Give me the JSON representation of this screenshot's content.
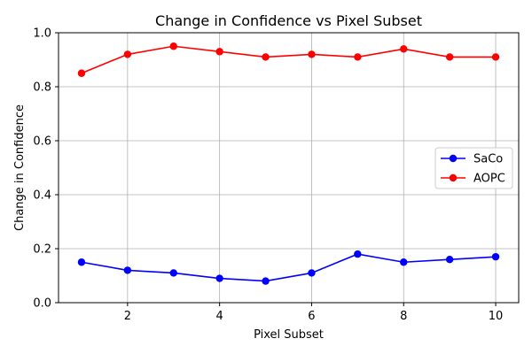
{
  "chart_data": {
    "type": "line",
    "title": "Change in Confidence vs Pixel Subset",
    "xlabel": "Pixel Subset",
    "ylabel": "Change in Confidence",
    "x": [
      1,
      2,
      3,
      4,
      5,
      6,
      7,
      8,
      9,
      10
    ],
    "xlim": [
      0.5,
      10.5
    ],
    "ylim": [
      0.0,
      1.0
    ],
    "xticks": [
      2,
      4,
      6,
      8,
      10
    ],
    "xtick_labels": [
      "2",
      "4",
      "6",
      "8",
      "10"
    ],
    "yticks": [
      0.0,
      0.2,
      0.4,
      0.6,
      0.8,
      1.0
    ],
    "ytick_labels": [
      "0.0",
      "0.2",
      "0.4",
      "0.6",
      "0.8",
      "1.0"
    ],
    "grid": true,
    "legend_position": "center-right",
    "series": [
      {
        "name": "SaCo",
        "color": "#0000ff",
        "marker": "circle",
        "values": [
          0.15,
          0.12,
          0.11,
          0.09,
          0.08,
          0.11,
          0.18,
          0.15,
          0.16,
          0.17
        ]
      },
      {
        "name": "AOPC",
        "color": "#ff0000",
        "marker": "circle",
        "values": [
          0.85,
          0.92,
          0.95,
          0.93,
          0.91,
          0.92,
          0.91,
          0.94,
          0.91,
          0.91
        ]
      }
    ]
  }
}
